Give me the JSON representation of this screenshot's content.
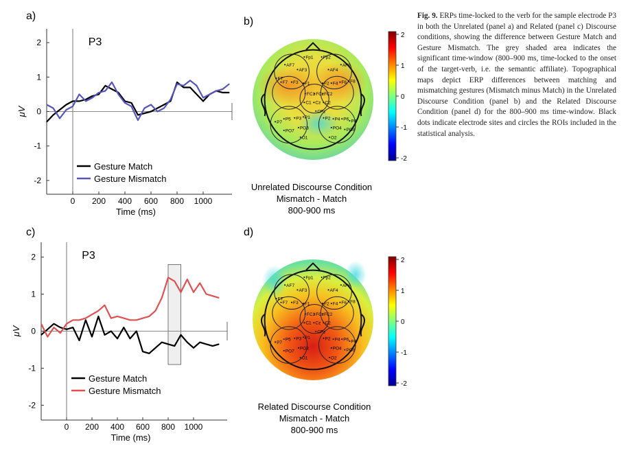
{
  "caption": {
    "fig_label": "Fig. 9.",
    "text": "ERPs time-locked to the verb for the sample electrode P3 in both the Unrelated (panel a) and Related (panel c) Discourse conditions, showing the difference between Gesture Match and Gesture Mismatch. The grey shaded area indicates the significant time-window (800–900 ms, time-locked to the onset of the target-verb, i.e. the semantic affiliate). Topographical maps depict ERP differences between matching and mismatching gestures (Mismatch minus Match) in the Unrelated Discourse Condition (panel b) and the Related Discourse Condition (panel d) for the 800–900 ms time-window. Black dots indicate electrode sites and circles the ROIs included in the statistical analysis."
  },
  "chart_data": [
    {
      "panel": "a)",
      "type": "line",
      "title": "P3",
      "xlabel": "Time (ms)",
      "ylabel": "μV",
      "xlim": [
        -200,
        1200
      ],
      "ylim": [
        -2.4,
        2.4
      ],
      "xticks": [
        0,
        200,
        400,
        600,
        800,
        1000
      ],
      "yticks": [
        -2,
        -1,
        0,
        1,
        2
      ],
      "legend_position": "bottom-left",
      "shaded_window": null,
      "series": [
        {
          "name": "Gesture Match",
          "color": "#000000",
          "x": [
            -200,
            -150,
            -100,
            -50,
            0,
            50,
            100,
            150,
            200,
            250,
            300,
            350,
            400,
            450,
            500,
            550,
            600,
            650,
            700,
            750,
            800,
            850,
            900,
            950,
            1000,
            1050,
            1100,
            1150,
            1200
          ],
          "y": [
            -0.3,
            -0.1,
            0.05,
            0.2,
            0.3,
            0.3,
            0.35,
            0.45,
            0.5,
            0.75,
            0.65,
            0.55,
            0.3,
            0.25,
            -0.1,
            -0.05,
            0.0,
            0.1,
            0.2,
            0.3,
            0.85,
            0.7,
            0.7,
            0.5,
            0.3,
            0.5,
            0.6,
            0.55,
            0.55
          ]
        },
        {
          "name": "Gesture Mismatch",
          "color": "#5555bb",
          "x": [
            -200,
            -150,
            -100,
            -50,
            0,
            50,
            100,
            150,
            200,
            250,
            300,
            350,
            400,
            450,
            500,
            550,
            600,
            650,
            700,
            750,
            800,
            850,
            900,
            950,
            1000,
            1050,
            1100,
            1150,
            1200
          ],
          "y": [
            0.2,
            0.1,
            -0.2,
            0.05,
            0.15,
            0.5,
            0.3,
            0.4,
            0.55,
            0.6,
            0.85,
            0.5,
            0.25,
            0.15,
            -0.25,
            0.1,
            0.2,
            0.0,
            0.1,
            0.35,
            0.8,
            0.75,
            0.9,
            0.75,
            0.4,
            0.5,
            0.6,
            0.65,
            0.8
          ]
        }
      ]
    },
    {
      "panel": "c)",
      "type": "line",
      "title": "P3",
      "xlabel": "Time (ms)",
      "ylabel": "μV",
      "xlim": [
        -200,
        1200
      ],
      "ylim": [
        -2.4,
        2.4
      ],
      "xticks": [
        0,
        200,
        400,
        600,
        800,
        1000
      ],
      "yticks": [
        -2,
        -1,
        0,
        1,
        2
      ],
      "legend_position": "bottom-left",
      "shaded_window": [
        800,
        900
      ],
      "series": [
        {
          "name": "Gesture Match",
          "color": "#000000",
          "x": [
            -200,
            -150,
            -100,
            -50,
            0,
            50,
            100,
            150,
            200,
            250,
            300,
            350,
            400,
            450,
            500,
            550,
            600,
            650,
            700,
            750,
            800,
            850,
            900,
            950,
            1000,
            1050,
            1100,
            1150,
            1200
          ],
          "y": [
            -0.1,
            0.05,
            0.2,
            0.1,
            0.05,
            0.1,
            -0.25,
            0.3,
            -0.15,
            0.4,
            -0.1,
            0.0,
            -0.2,
            0.1,
            -0.2,
            0.0,
            -0.55,
            -0.6,
            -0.45,
            -0.3,
            -0.35,
            -0.4,
            -0.1,
            -0.3,
            -0.45,
            -0.3,
            -0.35,
            -0.4,
            -0.35
          ]
        },
        {
          "name": "Gesture Mismatch",
          "color": "#e05050",
          "x": [
            -200,
            -150,
            -100,
            -50,
            0,
            50,
            100,
            150,
            200,
            250,
            300,
            350,
            400,
            450,
            500,
            550,
            600,
            650,
            700,
            750,
            800,
            850,
            900,
            950,
            1000,
            1050,
            1100,
            1150,
            1200
          ],
          "y": [
            0.2,
            -0.15,
            0.1,
            -0.05,
            0.2,
            0.3,
            0.3,
            0.35,
            0.45,
            0.55,
            0.7,
            0.35,
            0.4,
            0.35,
            0.3,
            0.3,
            0.35,
            0.4,
            0.55,
            0.9,
            1.45,
            1.35,
            1.05,
            1.4,
            1.05,
            1.3,
            1.0,
            0.95,
            0.9
          ]
        }
      ]
    }
  ],
  "panels": {
    "a": {
      "label": "a)",
      "title": "P3"
    },
    "b": {
      "label": "b)",
      "title_lines": [
        "Unrelated Discourse Condition",
        "Mismatch - Match",
        "800-900 ms"
      ]
    },
    "c": {
      "label": "c)",
      "title": "P3"
    },
    "d": {
      "label": "d)",
      "title_lines": [
        "Related Discourse Condition",
        "Mismatch - Match",
        "800-900 ms"
      ]
    }
  },
  "colorbar": {
    "ticks": [
      "2",
      "1",
      "0",
      "-1",
      "-2"
    ],
    "colormap": "jet"
  },
  "electrodes": [
    "Fp1",
    "Fp2",
    "AF7",
    "AF3",
    "AF4",
    "AF8",
    "FT",
    "F7",
    "F3",
    "F1",
    "F2",
    "F4",
    "F6",
    "F8",
    "FC1",
    "FCz",
    "FC2",
    "C1",
    "Cz",
    "C2",
    "CPz",
    "P7",
    "P5",
    "P3",
    "P1",
    "P2",
    "P4",
    "P6",
    "P8",
    "PO7",
    "PO3",
    "PO4",
    "PO8",
    "O1",
    "O2"
  ],
  "colors": {
    "match": "#000000",
    "mismatch_a": "#5555bb",
    "mismatch_c": "#e05050",
    "shade": "#e8e8e8"
  }
}
